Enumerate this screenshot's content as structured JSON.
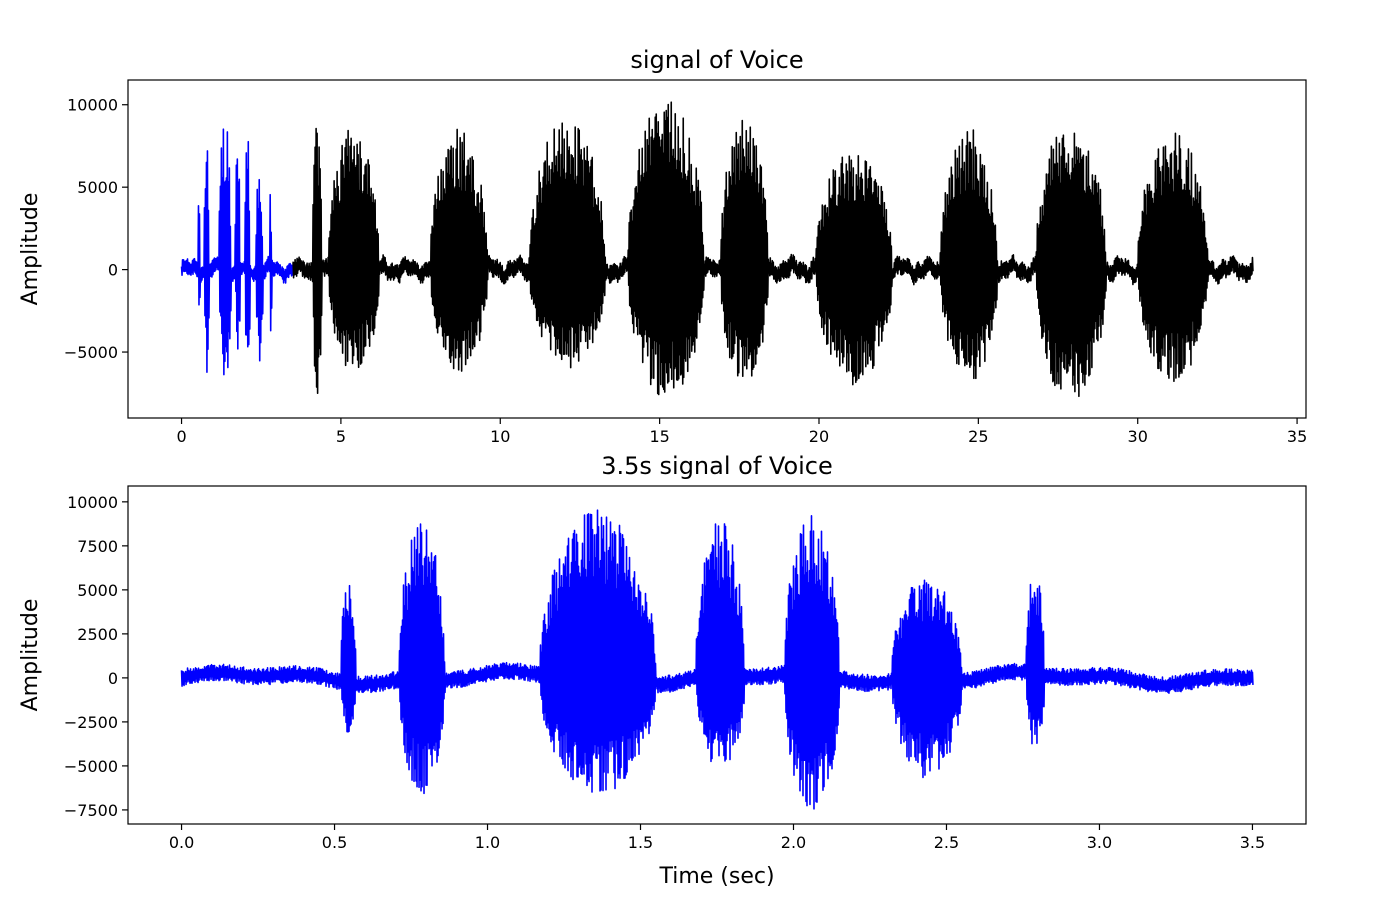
{
  "chart_data": [
    {
      "type": "line",
      "title": "signal of Voice",
      "xlabel": "",
      "ylabel": "Amplitude",
      "xlim": [
        -1.68,
        35.28
      ],
      "ylim": [
        -9000,
        11500
      ],
      "xticks": [
        0,
        5,
        10,
        15,
        20,
        25,
        30,
        35
      ],
      "xtick_labels": [
        "0",
        "5",
        "10",
        "15",
        "20",
        "25",
        "30",
        "35"
      ],
      "yticks": [
        -5000,
        0,
        5000,
        10000
      ],
      "ytick_labels": [
        "−5000",
        "0",
        "5000",
        "10000"
      ],
      "duration": 33.6,
      "grid": false,
      "series": [
        {
          "color": "#0000ff",
          "x_range": [
            0,
            3.5
          ],
          "noise_amplitude": 600,
          "bursts": [
            [
              0.52,
              0.57,
              5400,
              -3200
            ],
            [
              0.71,
              0.86,
              8900,
              -6600
            ],
            [
              1.17,
              1.55,
              9600,
              -6600
            ],
            [
              1.68,
              1.84,
              9000,
              -5200
            ],
            [
              1.97,
              2.15,
              9400,
              -7600
            ],
            [
              2.32,
              2.55,
              5800,
              -5700
            ],
            [
              2.76,
              2.82,
              6300,
              -4200
            ]
          ]
        },
        {
          "color": "#000000",
          "x_range": [
            3.5,
            33.6
          ],
          "noise_amplitude": 700,
          "bursts": [
            [
              4.1,
              4.4,
              9200,
              -7600
            ],
            [
              4.6,
              6.2,
              8700,
              -6200
            ],
            [
              7.8,
              9.6,
              8600,
              -6200
            ],
            [
              10.9,
              13.3,
              9200,
              -6000
            ],
            [
              14.0,
              16.4,
              10800,
              -7800
            ],
            [
              16.9,
              18.4,
              9300,
              -7000
            ],
            [
              19.9,
              22.3,
              7500,
              -7000
            ],
            [
              23.8,
              25.6,
              8600,
              -6800
            ],
            [
              26.8,
              29.0,
              9200,
              -8100
            ],
            [
              30.0,
              32.2,
              8500,
              -6800
            ]
          ]
        }
      ]
    },
    {
      "type": "line",
      "title": "3.5s signal of Voice",
      "xlabel": "Time (sec)",
      "ylabel": "Amplitude",
      "xlim": [
        -0.175,
        3.675
      ],
      "ylim": [
        -8300,
        10900
      ],
      "xticks": [
        0.0,
        0.5,
        1.0,
        1.5,
        2.0,
        2.5,
        3.0,
        3.5
      ],
      "xtick_labels": [
        "0.0",
        "0.5",
        "1.0",
        "1.5",
        "2.0",
        "2.5",
        "3.0",
        "3.5"
      ],
      "yticks": [
        -7500,
        -5000,
        -2500,
        0,
        2500,
        5000,
        7500,
        10000
      ],
      "ytick_labels": [
        "−7500",
        "−5000",
        "−2500",
        "0",
        "2500",
        "5000",
        "7500",
        "10000"
      ],
      "duration": 3.5,
      "grid": false,
      "series": [
        {
          "color": "#0000ff",
          "x_range": [
            0,
            3.5
          ],
          "noise_amplitude": 600,
          "bursts": [
            [
              0.52,
              0.57,
              5400,
              -3200
            ],
            [
              0.71,
              0.86,
              8900,
              -6600
            ],
            [
              1.17,
              1.55,
              9600,
              -6600
            ],
            [
              1.68,
              1.84,
              9000,
              -5200
            ],
            [
              1.97,
              2.15,
              9400,
              -7600
            ],
            [
              2.32,
              2.55,
              5800,
              -5700
            ],
            [
              2.76,
              2.82,
              6300,
              -4200
            ]
          ]
        }
      ]
    }
  ]
}
